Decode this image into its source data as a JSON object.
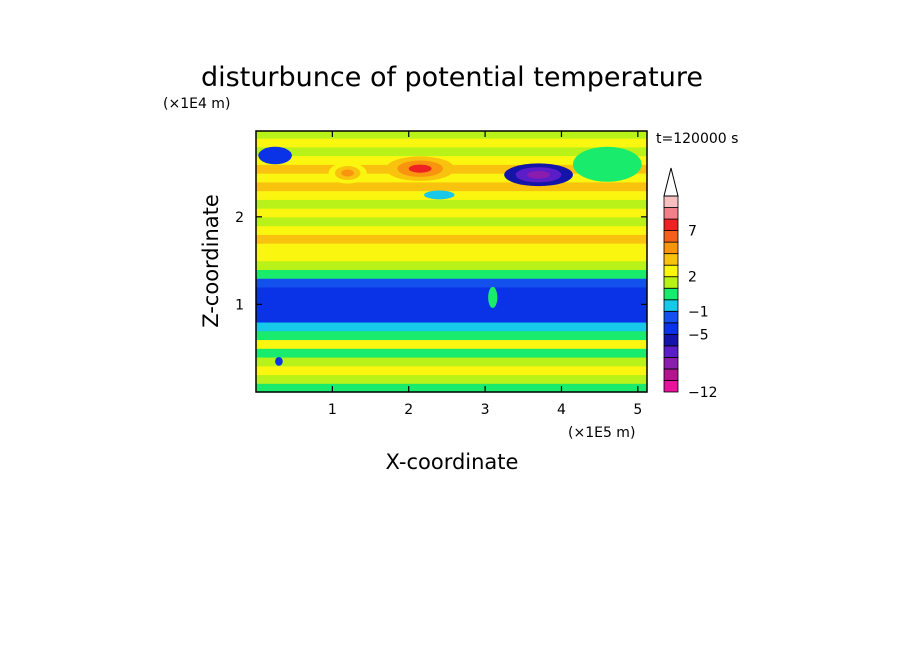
{
  "chart_data": {
    "type": "heatmap",
    "title": "disturbunce of potential temperature",
    "xlabel": "X-coordinate",
    "ylabel": "Z-coordinate",
    "x_unit": "(×1E5 m)",
    "y_unit": "(×1E4 m)",
    "time_label": "t=120000 s",
    "xlim": [
      0,
      5.12
    ],
    "ylim": [
      0,
      2.98
    ],
    "x_ticks": [
      {
        "value": 1,
        "label": "1"
      },
      {
        "value": 2,
        "label": "2"
      },
      {
        "value": 3,
        "label": "3"
      },
      {
        "value": 4,
        "label": "4"
      },
      {
        "value": 5,
        "label": "5"
      }
    ],
    "y_ticks": [
      {
        "value": 1,
        "label": "1"
      },
      {
        "value": 2,
        "label": "2"
      }
    ],
    "grid": false,
    "colorbar": {
      "placement": "right",
      "extend_top": true,
      "levels": [
        {
          "value": -12,
          "color": "#e6139c"
        },
        {
          "value": -10.7,
          "color": "#b3158e"
        },
        {
          "value": -9.4,
          "color": "#8a1dae"
        },
        {
          "value": -8.1,
          "color": "#5b1dc7"
        },
        {
          "value": -6.8,
          "color": "#1414a8"
        },
        {
          "value": -5,
          "color": "#0a32e6"
        },
        {
          "value": -3,
          "color": "#1450ee"
        },
        {
          "value": -1,
          "color": "#18c8e8"
        },
        {
          "value": 0,
          "color": "#19ec6c"
        },
        {
          "value": 1,
          "color": "#b8f218"
        },
        {
          "value": 2,
          "color": "#faf60f"
        },
        {
          "value": 3,
          "color": "#f9c20e"
        },
        {
          "value": 4.5,
          "color": "#f9940e"
        },
        {
          "value": 6,
          "color": "#f2601a"
        },
        {
          "value": 7,
          "color": "#ee2222"
        },
        {
          "value": 8.5,
          "color": "#f27f8a"
        },
        {
          "value": 10,
          "color": "#f7c0c0"
        }
      ],
      "tick_labels": [
        {
          "value": 7,
          "label": "7"
        },
        {
          "value": 2,
          "label": "2"
        },
        {
          "value": -1,
          "label": "−1"
        },
        {
          "value": -5,
          "label": "−5"
        },
        {
          "value": -12,
          "label": "−12"
        }
      ]
    },
    "bands": [
      {
        "z": 0.0,
        "v": 0.5
      },
      {
        "z": 0.1,
        "v": 1.2
      },
      {
        "z": 0.2,
        "v": 2.6
      },
      {
        "z": 0.3,
        "v": 1.3
      },
      {
        "z": 0.4,
        "v": 0.4
      },
      {
        "z": 0.5,
        "v": 2.4
      },
      {
        "z": 0.6,
        "v": 0.5
      },
      {
        "z": 0.7,
        "v": -0.7
      },
      {
        "z": 0.8,
        "v": -4.0
      },
      {
        "z": 0.9,
        "v": -4.5
      },
      {
        "z": 1.0,
        "v": -4.6
      },
      {
        "z": 1.1,
        "v": -4.4
      },
      {
        "z": 1.2,
        "v": -1.5
      },
      {
        "z": 1.3,
        "v": 0.4
      },
      {
        "z": 1.4,
        "v": 1.4
      },
      {
        "z": 1.5,
        "v": 2.2
      },
      {
        "z": 1.6,
        "v": 2.6
      },
      {
        "z": 1.7,
        "v": 3.2
      },
      {
        "z": 1.8,
        "v": 2.4
      },
      {
        "z": 1.9,
        "v": 1.4
      },
      {
        "z": 2.0,
        "v": 2.6
      },
      {
        "z": 2.1,
        "v": 1.3
      },
      {
        "z": 2.2,
        "v": 2.4
      },
      {
        "z": 2.3,
        "v": 3.0
      },
      {
        "z": 2.4,
        "v": 2.2
      },
      {
        "z": 2.5,
        "v": 3.2
      },
      {
        "z": 2.6,
        "v": 2.5
      },
      {
        "z": 2.7,
        "v": 1.4
      },
      {
        "z": 2.8,
        "v": 2.2
      },
      {
        "z": 2.9,
        "v": 1.8
      }
    ],
    "anomalies": [
      {
        "x": 3.7,
        "z": 2.48,
        "rx": 0.45,
        "rz": 0.13,
        "v": -9
      },
      {
        "x": 2.15,
        "z": 2.55,
        "rx": 0.45,
        "rz": 0.14,
        "v": 7
      },
      {
        "x": 0.25,
        "z": 2.7,
        "rx": 0.22,
        "rz": 0.1,
        "v": -5
      },
      {
        "x": 1.2,
        "z": 2.5,
        "rx": 0.25,
        "rz": 0.12,
        "v": 4.5
      },
      {
        "x": 4.6,
        "z": 2.6,
        "rx": 0.45,
        "rz": 0.2,
        "v": 0.5
      },
      {
        "x": 2.4,
        "z": 2.25,
        "rx": 0.2,
        "rz": 0.05,
        "v": -1
      },
      {
        "x": 0.3,
        "z": 0.35,
        "rx": 0.05,
        "rz": 0.05,
        "v": -5
      },
      {
        "x": 3.1,
        "z": 1.08,
        "rx": 0.06,
        "rz": 0.12,
        "v": 0.5
      }
    ]
  }
}
